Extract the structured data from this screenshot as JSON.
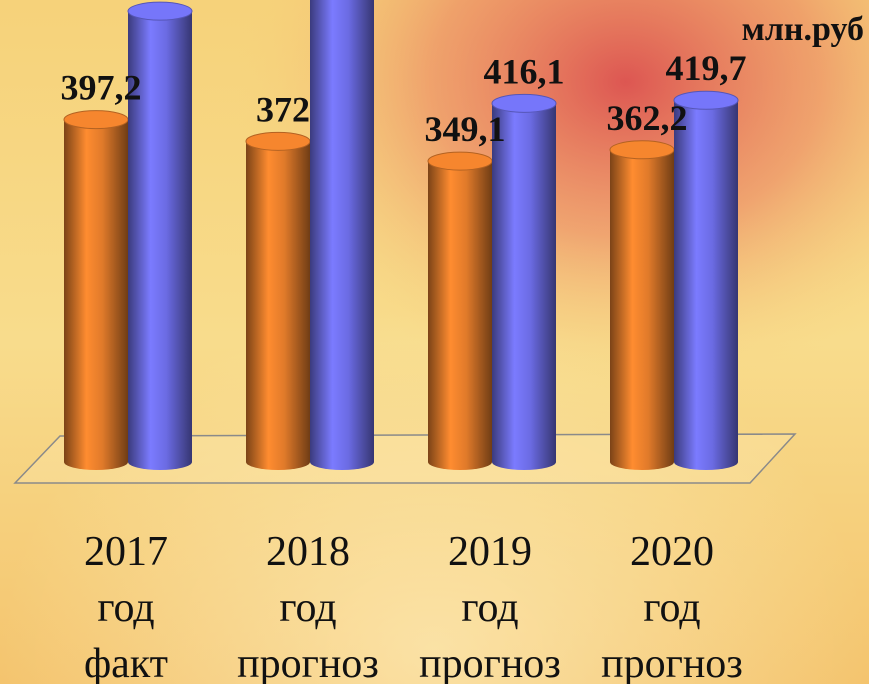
{
  "chart_data": {
    "type": "bar3d",
    "unit_label": "млн.руб",
    "categories": [
      [
        "2017",
        "год",
        "факт"
      ],
      [
        "2018",
        "год",
        "прогноз"
      ],
      [
        "2019",
        "год",
        "прогноз"
      ],
      [
        "2020",
        "год",
        "прогноз"
      ]
    ],
    "series": [
      {
        "color": "#e07a2a",
        "values": [
          397.2,
          372,
          349.1,
          362.2
        ],
        "value_labels": [
          "397,2",
          "372",
          "349,1",
          "362,2"
        ]
      },
      {
        "color": "#6b6be3",
        "values": [
          523,
          560,
          416.1,
          419.7
        ],
        "value_labels": [
          null,
          null,
          "416,1",
          "419,7"
        ]
      }
    ]
  }
}
